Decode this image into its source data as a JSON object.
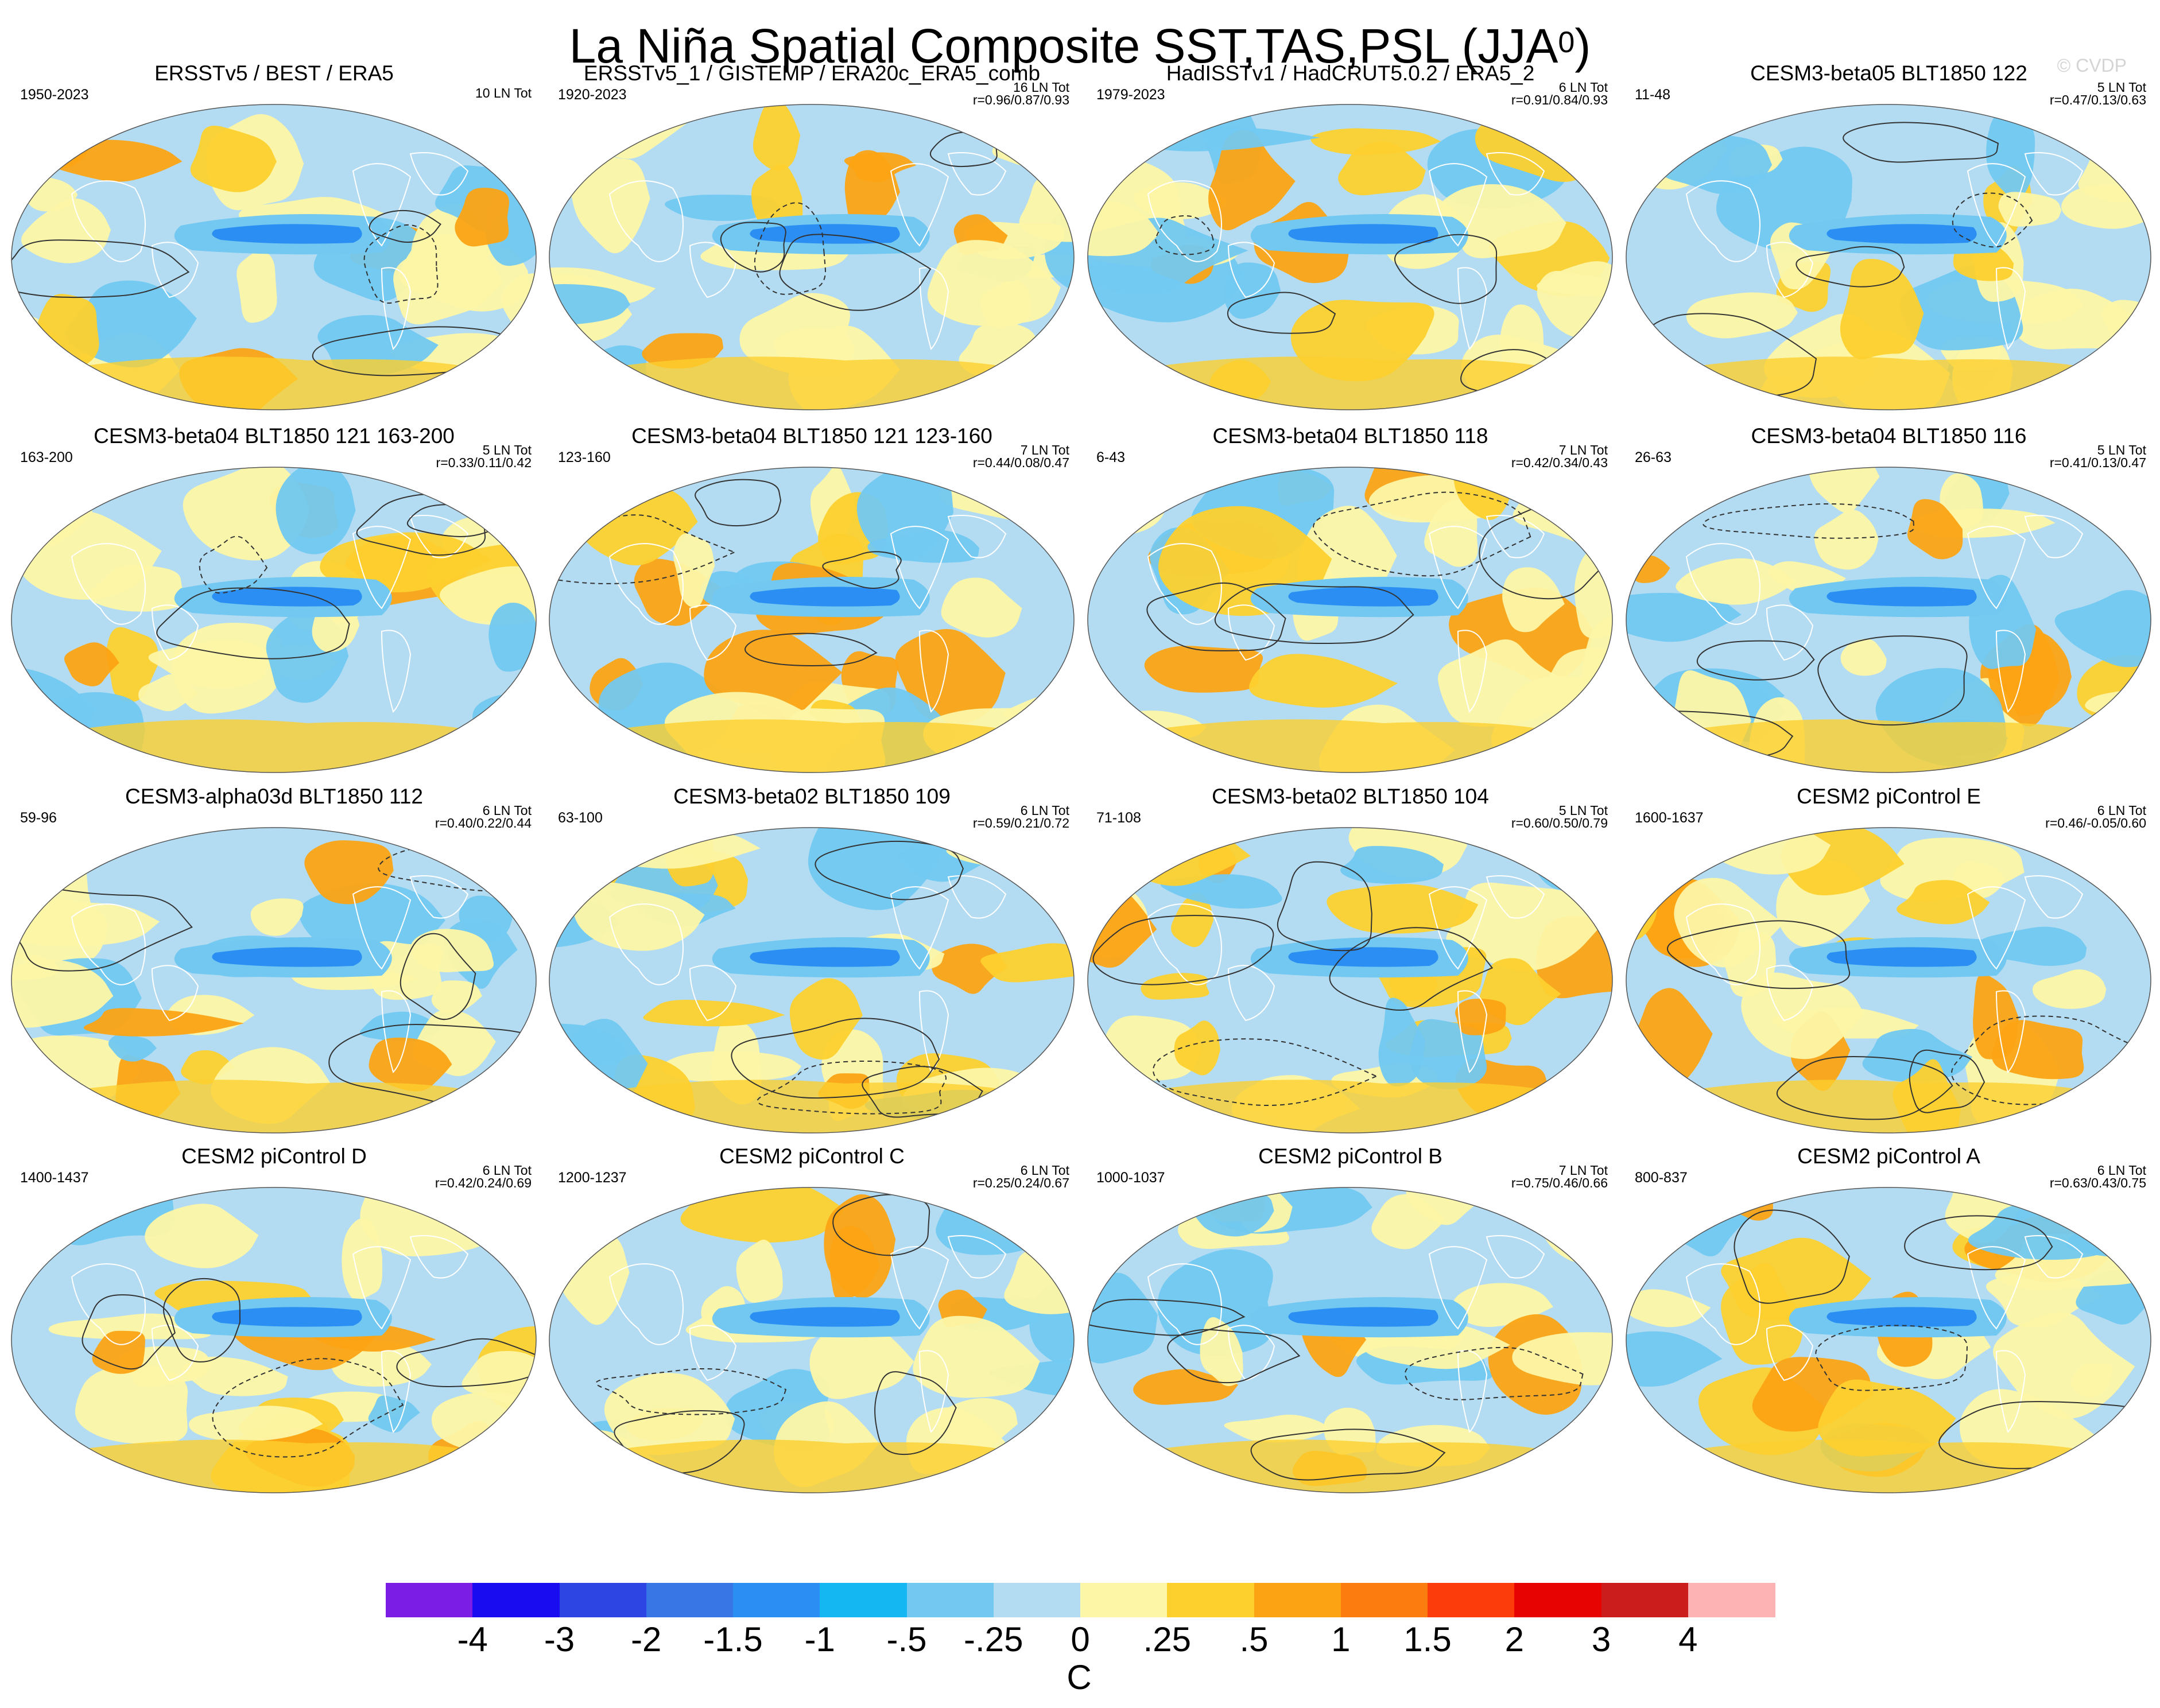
{
  "title": {
    "main": "La Niña Spatial Composite SST,TAS,PSL (JJA",
    "sup": "0",
    "close": ")"
  },
  "watermark": "© CVDP",
  "colors": {
    "fill": [
      "#7c1de6",
      "#1a0cf0",
      "#2c45e3",
      "#3876e6",
      "#2b8ef2",
      "#14b7f2",
      "#72c8f0",
      "#b3dcf2",
      "#fdf6a6",
      "#fdd02e",
      "#fca314",
      "#fd7c0f",
      "#fd3c0c",
      "#e80303",
      "#cc1d1d",
      "#fdb3b3"
    ],
    "ocean_light_blue": "#b3dcf2",
    "ocean_blue": "#72c8f0",
    "pale_yellow": "#fdf6a6",
    "gold": "#fdd02e",
    "orange": "#fca314",
    "coast": "#ffffff",
    "contour": "#333333"
  },
  "chart_data": {
    "type": "heatmap",
    "description_fields": "16 global map panels (Robinson projection): shaded SST/TAS composite anomalies (C) with PSL contours",
    "colorbar": {
      "levels": [
        "-4",
        "-3",
        "-2",
        "-1.5",
        "-1",
        "-.5",
        "-.25",
        "0",
        ".25",
        ".5",
        "1",
        "1.5",
        "2",
        "3",
        "4"
      ],
      "units": "C"
    },
    "panels": [
      {
        "title": "ERSSTv5 / BEST / ERA5",
        "years": "1950-2023",
        "count": "10 LN Tot",
        "corr": ""
      },
      {
        "title": "ERSSTv5_1 / GISTEMP / ERA20c_ERA5_comb",
        "years": "1920-2023",
        "count": "16 LN Tot",
        "corr": "r=0.96/0.87/0.93"
      },
      {
        "title": "HadISSTv1 / HadCRUT5.0.2 / ERA5_2",
        "years": "1979-2023",
        "count": "6 LN Tot",
        "corr": "r=0.91/0.84/0.93"
      },
      {
        "title": "CESM3-beta05 BLT1850 122",
        "years": "11-48",
        "count": "5 LN Tot",
        "corr": "r=0.47/0.13/0.63"
      },
      {
        "title": "CESM3-beta04 BLT1850 121 163-200",
        "years": "163-200",
        "count": "5 LN Tot",
        "corr": "r=0.33/0.11/0.42"
      },
      {
        "title": "CESM3-beta04 BLT1850 121 123-160",
        "years": "123-160",
        "count": "7 LN Tot",
        "corr": "r=0.44/0.08/0.47"
      },
      {
        "title": "CESM3-beta04 BLT1850 118",
        "years": "6-43",
        "count": "7 LN Tot",
        "corr": "r=0.42/0.34/0.43"
      },
      {
        "title": "CESM3-beta04 BLT1850 116",
        "years": "26-63",
        "count": "5 LN Tot",
        "corr": "r=0.41/0.13/0.47"
      },
      {
        "title": "CESM3-alpha03d BLT1850 112",
        "years": "59-96",
        "count": "6 LN Tot",
        "corr": "r=0.40/0.22/0.44"
      },
      {
        "title": "CESM3-beta02 BLT1850 109",
        "years": "63-100",
        "count": "6 LN Tot",
        "corr": "r=0.59/0.21/0.72"
      },
      {
        "title": "CESM3-beta02 BLT1850 104",
        "years": "71-108",
        "count": "5 LN Tot",
        "corr": "r=0.60/0.50/0.79"
      },
      {
        "title": "CESM2 piControl E",
        "years": "1600-1637",
        "count": "6 LN Tot",
        "corr": "r=0.46/-0.05/0.60"
      },
      {
        "title": "CESM2 piControl D",
        "years": "1400-1437",
        "count": "6 LN Tot",
        "corr": "r=0.42/0.24/0.69"
      },
      {
        "title": "CESM2 piControl C",
        "years": "1200-1237",
        "count": "6 LN Tot",
        "corr": "r=0.25/0.24/0.67"
      },
      {
        "title": "CESM2 piControl B",
        "years": "1000-1037",
        "count": "7 LN Tot",
        "corr": "r=0.75/0.46/0.66"
      },
      {
        "title": "CESM2 piControl A",
        "years": "800-837",
        "count": "6 LN Tot",
        "corr": "r=0.63/0.43/0.75"
      }
    ]
  }
}
